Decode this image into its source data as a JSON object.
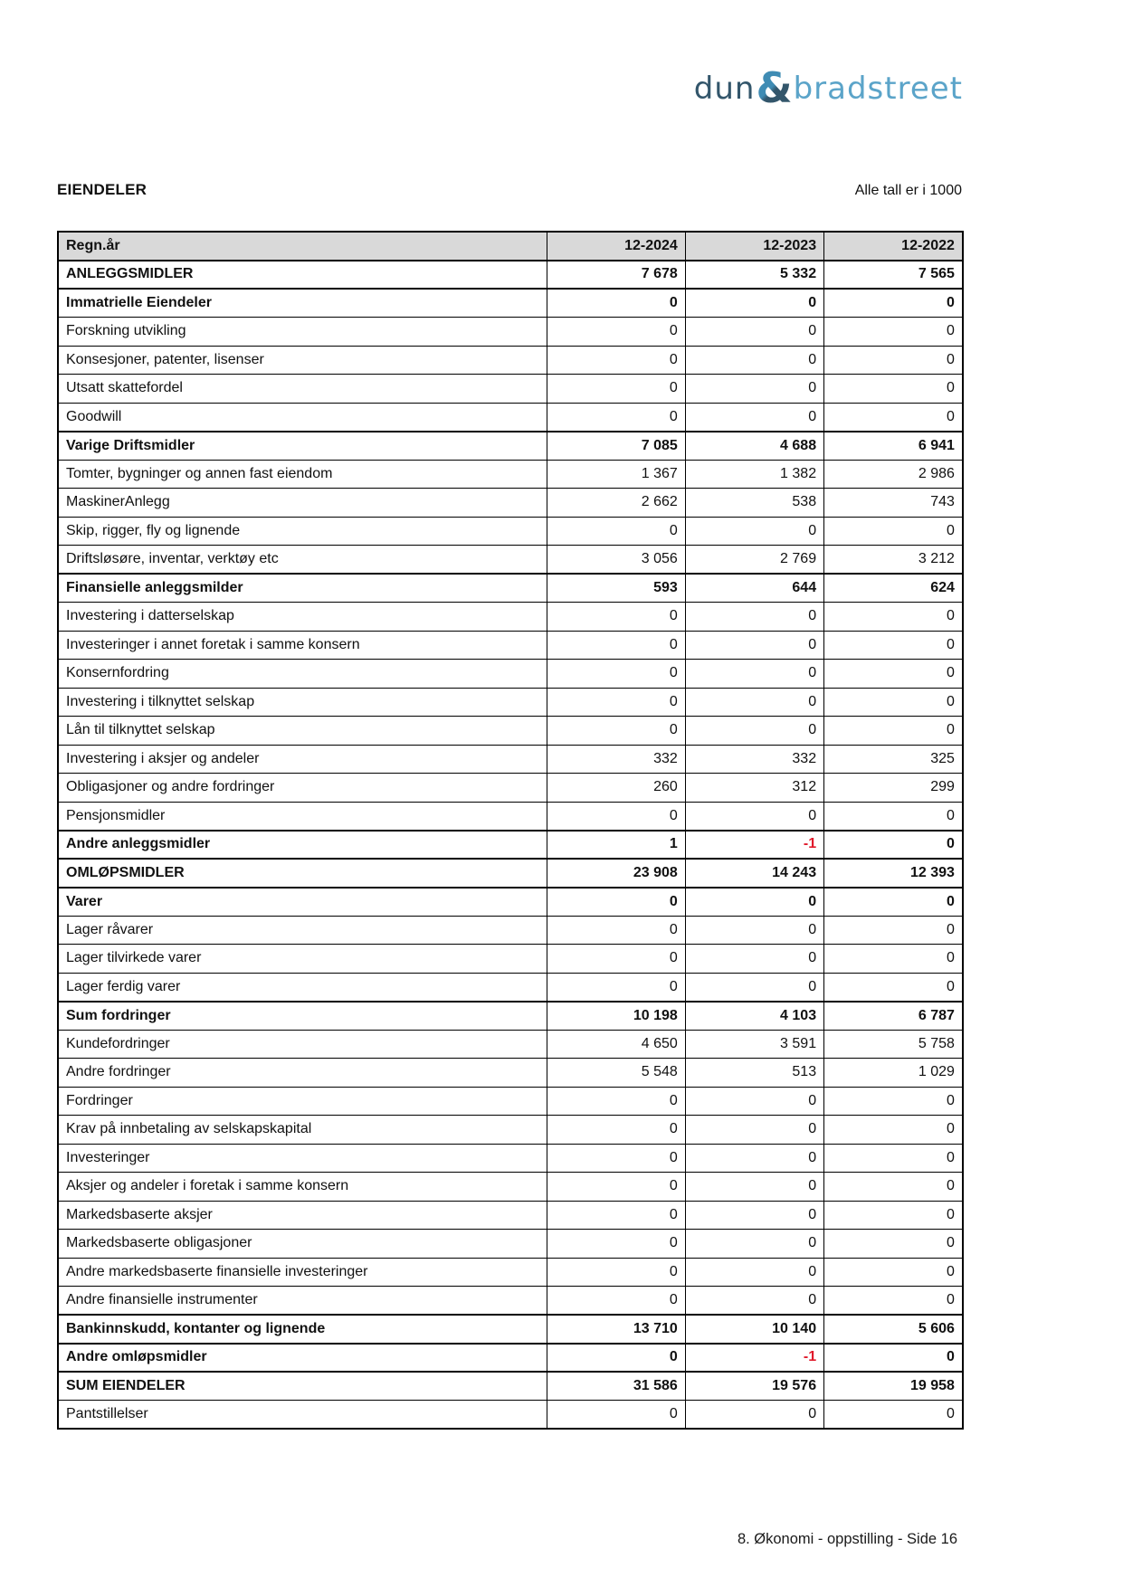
{
  "logo": {
    "dun": "dun",
    "amp": "&",
    "bradstreet": "bradstreet"
  },
  "header": {
    "section_title": "EIENDELER",
    "units_note": "Alle tall er i 1000"
  },
  "table": {
    "header": {
      "label": "Regn.år",
      "cols": [
        "12-2024",
        "12-2023",
        "12-2022"
      ]
    },
    "rows": [
      {
        "label": "ANLEGGSMIDLER",
        "values": [
          "7 678",
          "5 332",
          "7 565"
        ],
        "bold": true
      },
      {
        "label": "Immatrielle Eiendeler",
        "values": [
          "0",
          "0",
          "0"
        ],
        "bold": true
      },
      {
        "label": "Forskning utvikling",
        "values": [
          "0",
          "0",
          "0"
        ],
        "bold": false
      },
      {
        "label": "Konsesjoner, patenter, lisenser",
        "values": [
          "0",
          "0",
          "0"
        ],
        "bold": false
      },
      {
        "label": "Utsatt skattefordel",
        "values": [
          "0",
          "0",
          "0"
        ],
        "bold": false
      },
      {
        "label": "Goodwill",
        "values": [
          "0",
          "0",
          "0"
        ],
        "bold": false
      },
      {
        "label": "Varige Driftsmidler",
        "values": [
          "7 085",
          "4 688",
          "6 941"
        ],
        "bold": true
      },
      {
        "label": "Tomter, bygninger og annen fast eiendom",
        "values": [
          "1 367",
          "1 382",
          "2 986"
        ],
        "bold": false
      },
      {
        "label": "MaskinerAnlegg",
        "values": [
          "2 662",
          "538",
          "743"
        ],
        "bold": false
      },
      {
        "label": "Skip, rigger, fly og lignende",
        "values": [
          "0",
          "0",
          "0"
        ],
        "bold": false
      },
      {
        "label": "Driftsløsøre, inventar, verktøy etc",
        "values": [
          "3 056",
          "2 769",
          "3 212"
        ],
        "bold": false
      },
      {
        "label": "Finansielle anleggsmilder",
        "values": [
          "593",
          "644",
          "624"
        ],
        "bold": true
      },
      {
        "label": "Investering i datterselskap",
        "values": [
          "0",
          "0",
          "0"
        ],
        "bold": false
      },
      {
        "label": "Investeringer i annet foretak i samme konsern",
        "values": [
          "0",
          "0",
          "0"
        ],
        "bold": false
      },
      {
        "label": "Konsernfordring",
        "values": [
          "0",
          "0",
          "0"
        ],
        "bold": false
      },
      {
        "label": "Investering i tilknyttet selskap",
        "values": [
          "0",
          "0",
          "0"
        ],
        "bold": false
      },
      {
        "label": "Lån til tilknyttet selskap",
        "values": [
          "0",
          "0",
          "0"
        ],
        "bold": false
      },
      {
        "label": "Investering i aksjer og andeler",
        "values": [
          "332",
          "332",
          "325"
        ],
        "bold": false
      },
      {
        "label": "Obligasjoner og andre fordringer",
        "values": [
          "260",
          "312",
          "299"
        ],
        "bold": false
      },
      {
        "label": "Pensjonsmidler",
        "values": [
          "0",
          "0",
          "0"
        ],
        "bold": false
      },
      {
        "label": "Andre anleggsmidler",
        "values": [
          "1",
          "-1",
          "0"
        ],
        "bold": true
      },
      {
        "label": "OMLØPSMIDLER",
        "values": [
          "23 908",
          "14 243",
          "12 393"
        ],
        "bold": true
      },
      {
        "label": "Varer",
        "values": [
          "0",
          "0",
          "0"
        ],
        "bold": true
      },
      {
        "label": "Lager råvarer",
        "values": [
          "0",
          "0",
          "0"
        ],
        "bold": false
      },
      {
        "label": "Lager tilvirkede varer",
        "values": [
          "0",
          "0",
          "0"
        ],
        "bold": false
      },
      {
        "label": "Lager ferdig varer",
        "values": [
          "0",
          "0",
          "0"
        ],
        "bold": false
      },
      {
        "label": "Sum fordringer",
        "values": [
          "10 198",
          "4 103",
          "6 787"
        ],
        "bold": true
      },
      {
        "label": "Kundefordringer",
        "values": [
          "4 650",
          "3 591",
          "5 758"
        ],
        "bold": false
      },
      {
        "label": "Andre fordringer",
        "values": [
          "5 548",
          "513",
          "1 029"
        ],
        "bold": false
      },
      {
        "label": "Fordringer",
        "values": [
          "0",
          "0",
          "0"
        ],
        "bold": false
      },
      {
        "label": "Krav på innbetaling av selskapskapital",
        "values": [
          "0",
          "0",
          "0"
        ],
        "bold": false
      },
      {
        "label": "Investeringer",
        "values": [
          "0",
          "0",
          "0"
        ],
        "bold": false
      },
      {
        "label": "Aksjer og andeler i foretak i samme konsern",
        "values": [
          "0",
          "0",
          "0"
        ],
        "bold": false
      },
      {
        "label": "Markedsbaserte aksjer",
        "values": [
          "0",
          "0",
          "0"
        ],
        "bold": false
      },
      {
        "label": "Markedsbaserte obligasjoner",
        "values": [
          "0",
          "0",
          "0"
        ],
        "bold": false
      },
      {
        "label": "Andre markedsbaserte finansielle investeringer",
        "values": [
          "0",
          "0",
          "0"
        ],
        "bold": false
      },
      {
        "label": "Andre finansielle instrumenter",
        "values": [
          "0",
          "0",
          "0"
        ],
        "bold": false
      },
      {
        "label": "Bankinnskudd, kontanter og lignende",
        "values": [
          "13 710",
          "10 140",
          "5 606"
        ],
        "bold": true
      },
      {
        "label": "Andre omløpsmidler",
        "values": [
          "0",
          "-1",
          "0"
        ],
        "bold": true
      },
      {
        "label": "SUM EIENDELER",
        "values": [
          "31 586",
          "19 576",
          "19 958"
        ],
        "bold": true
      },
      {
        "label": "Pantstillelser",
        "values": [
          "0",
          "0",
          "0"
        ],
        "bold": false
      }
    ]
  },
  "footer": {
    "text": "8. Økonomi - oppstilling - Side 16"
  },
  "colors": {
    "negative_red": "#e01a2b",
    "header_bg": "#d9d9d9",
    "logo_dark": "#33566b",
    "logo_mid": "#3f8cb4",
    "logo_light": "#5ba4c9"
  }
}
